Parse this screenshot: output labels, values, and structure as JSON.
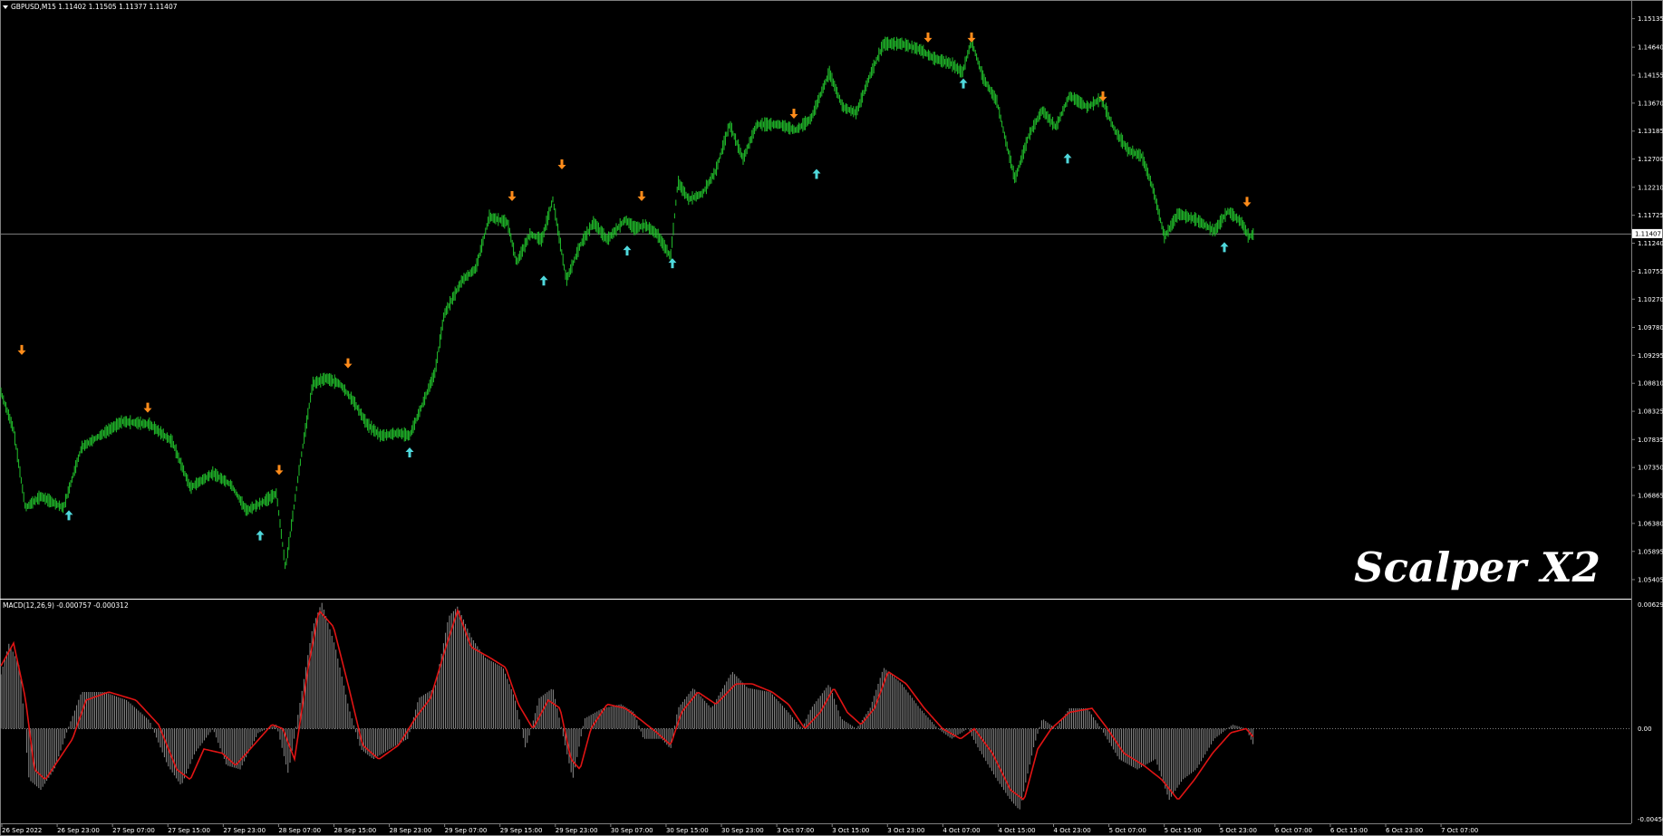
{
  "header": {
    "symbol_line": "GBPUSD,M15  1.11402 1.11505 1.11377 1.11407"
  },
  "watermark": "Scalper X2",
  "price_panel": {
    "current_price": "1.11407",
    "y_ticks": [
      "1.15135",
      "1.14640",
      "1.14155",
      "1.13670",
      "1.13185",
      "1.12700",
      "1.12210",
      "1.11725",
      "1.11240",
      "1.10755",
      "1.10270",
      "1.09780",
      "1.09295",
      "1.08810",
      "1.08325",
      "1.07835",
      "1.07350",
      "1.06865",
      "1.06380",
      "1.05895",
      "1.05405"
    ]
  },
  "macd_panel": {
    "label": "MACD(12,26,9) -0.000757 -0.000312",
    "y_ticks": [
      "0.00629",
      "0.00",
      "-0.004506"
    ]
  },
  "x_ticks": [
    "26 Sep 2022",
    "26 Sep 23:00",
    "27 Sep 07:00",
    "27 Sep 15:00",
    "27 Sep 23:00",
    "28 Sep 07:00",
    "28 Sep 15:00",
    "28 Sep 23:00",
    "29 Sep 07:00",
    "29 Sep 15:00",
    "29 Sep 23:00",
    "30 Sep 07:00",
    "30 Sep 15:00",
    "30 Sep 23:00",
    "3 Oct 07:00",
    "3 Oct 15:00",
    "3 Oct 23:00",
    "4 Oct 07:00",
    "4 Oct 15:00",
    "4 Oct 23:00",
    "5 Oct 07:00",
    "5 Oct 15:00",
    "5 Oct 23:00",
    "6 Oct 07:00",
    "6 Oct 15:00",
    "6 Oct 23:00",
    "7 Oct 07:00"
  ],
  "colors": {
    "background": "#000000",
    "candle": "#22c22c",
    "buy_arrow": "#4fd8dc",
    "sell_arrow": "#ff8c1a",
    "macd_hist": "#8c8c8c",
    "macd_signal": "#e01414",
    "grid_line": "#7f7f7f"
  },
  "chart_data": {
    "type": "line",
    "price_range": [
      1.0509,
      1.1538
    ],
    "macd_range": [
      -0.0046,
      0.00629
    ],
    "price_path": [
      [
        0,
        1.087
      ],
      [
        15,
        1.08
      ],
      [
        28,
        1.0665
      ],
      [
        45,
        1.0685
      ],
      [
        70,
        1.0665
      ],
      [
        90,
        1.077
      ],
      [
        110,
        1.079
      ],
      [
        135,
        1.0815
      ],
      [
        165,
        1.081
      ],
      [
        190,
        1.078
      ],
      [
        210,
        1.07
      ],
      [
        235,
        1.0725
      ],
      [
        255,
        1.0705
      ],
      [
        272,
        1.066
      ],
      [
        290,
        1.0675
      ],
      [
        305,
        1.069
      ],
      [
        315,
        1.056
      ],
      [
        330,
        1.073
      ],
      [
        345,
        1.088
      ],
      [
        360,
        1.089
      ],
      [
        375,
        1.088
      ],
      [
        390,
        1.085
      ],
      [
        405,
        1.081
      ],
      [
        420,
        1.079
      ],
      [
        440,
        1.0795
      ],
      [
        452,
        1.079
      ],
      [
        465,
        1.084
      ],
      [
        480,
        1.09
      ],
      [
        490,
        1.1
      ],
      [
        510,
        1.106
      ],
      [
        525,
        1.108
      ],
      [
        540,
        1.117
      ],
      [
        560,
        1.116
      ],
      [
        570,
        1.109
      ],
      [
        585,
        1.114
      ],
      [
        598,
        1.113
      ],
      [
        610,
        1.12
      ],
      [
        625,
        1.106
      ],
      [
        640,
        1.112
      ],
      [
        655,
        1.116
      ],
      [
        670,
        1.113
      ],
      [
        690,
        1.1165
      ],
      [
        700,
        1.115
      ],
      [
        712,
        1.1155
      ],
      [
        725,
        1.114
      ],
      [
        740,
        1.11
      ],
      [
        748,
        1.123
      ],
      [
        760,
        1.12
      ],
      [
        775,
        1.121
      ],
      [
        790,
        1.125
      ],
      [
        805,
        1.133
      ],
      [
        820,
        1.127
      ],
      [
        835,
        1.133
      ],
      [
        860,
        1.133
      ],
      [
        878,
        1.132
      ],
      [
        895,
        1.134
      ],
      [
        915,
        1.142
      ],
      [
        930,
        1.136
      ],
      [
        945,
        1.135
      ],
      [
        960,
        1.1415
      ],
      [
        975,
        1.147
      ],
      [
        995,
        1.147
      ],
      [
        1015,
        1.146
      ],
      [
        1030,
        1.1445
      ],
      [
        1050,
        1.1435
      ],
      [
        1062,
        1.142
      ],
      [
        1072,
        1.1475
      ],
      [
        1085,
        1.141
      ],
      [
        1100,
        1.137
      ],
      [
        1110,
        1.13
      ],
      [
        1120,
        1.1235
      ],
      [
        1135,
        1.131
      ],
      [
        1150,
        1.1355
      ],
      [
        1165,
        1.1325
      ],
      [
        1180,
        1.138
      ],
      [
        1200,
        1.136
      ],
      [
        1215,
        1.1375
      ],
      [
        1230,
        1.132
      ],
      [
        1245,
        1.1285
      ],
      [
        1260,
        1.1275
      ],
      [
        1272,
        1.122
      ],
      [
        1285,
        1.1135
      ],
      [
        1300,
        1.1175
      ],
      [
        1320,
        1.1165
      ],
      [
        1340,
        1.1145
      ],
      [
        1355,
        1.118
      ],
      [
        1370,
        1.116
      ],
      [
        1378,
        1.1135
      ],
      [
        1383,
        1.114
      ]
    ],
    "macd_hist_path": [
      [
        0,
        0.0025
      ],
      [
        10,
        0.0042
      ],
      [
        22,
        0.003
      ],
      [
        32,
        -0.0025
      ],
      [
        45,
        -0.003
      ],
      [
        60,
        -0.002
      ],
      [
        75,
        0.0
      ],
      [
        90,
        0.0018
      ],
      [
        115,
        0.0018
      ],
      [
        140,
        0.0014
      ],
      [
        165,
        0.0004
      ],
      [
        185,
        -0.0018
      ],
      [
        200,
        -0.0028
      ],
      [
        215,
        -0.0012
      ],
      [
        235,
        0.0
      ],
      [
        250,
        -0.0018
      ],
      [
        265,
        -0.002
      ],
      [
        285,
        -0.0002
      ],
      [
        305,
        0.0002
      ],
      [
        318,
        -0.0022
      ],
      [
        330,
        0.001
      ],
      [
        345,
        0.005
      ],
      [
        355,
        0.0062
      ],
      [
        370,
        0.004
      ],
      [
        385,
        0.001
      ],
      [
        398,
        -0.001
      ],
      [
        412,
        -0.0015
      ],
      [
        430,
        -0.001
      ],
      [
        450,
        -0.0005
      ],
      [
        462,
        0.0015
      ],
      [
        480,
        0.002
      ],
      [
        495,
        0.0055
      ],
      [
        505,
        0.006
      ],
      [
        520,
        0.0045
      ],
      [
        535,
        0.0035
      ],
      [
        555,
        0.003
      ],
      [
        568,
        0.0015
      ],
      [
        580,
        -0.001
      ],
      [
        595,
        0.0015
      ],
      [
        610,
        0.002
      ],
      [
        622,
        -0.0005
      ],
      [
        632,
        -0.0025
      ],
      [
        645,
        0.0005
      ],
      [
        665,
        0.001
      ],
      [
        685,
        0.0012
      ],
      [
        700,
        0.0008
      ],
      [
        710,
        -0.0005
      ],
      [
        730,
        -0.0005
      ],
      [
        740,
        -0.001
      ],
      [
        748,
        0.001
      ],
      [
        765,
        0.002
      ],
      [
        785,
        0.001
      ],
      [
        808,
        0.0028
      ],
      [
        825,
        0.002
      ],
      [
        850,
        0.0018
      ],
      [
        870,
        0.0008
      ],
      [
        885,
        0.0
      ],
      [
        895,
        0.001
      ],
      [
        915,
        0.0022
      ],
      [
        928,
        0.0005
      ],
      [
        945,
        0.0
      ],
      [
        960,
        0.001
      ],
      [
        975,
        0.003
      ],
      [
        995,
        0.0022
      ],
      [
        1015,
        0.001
      ],
      [
        1035,
        0.0
      ],
      [
        1050,
        -0.0005
      ],
      [
        1068,
        0.0
      ],
      [
        1080,
        -0.001
      ],
      [
        1100,
        -0.0025
      ],
      [
        1115,
        -0.0035
      ],
      [
        1125,
        -0.004
      ],
      [
        1140,
        -0.001
      ],
      [
        1150,
        0.0005
      ],
      [
        1165,
        0.0
      ],
      [
        1180,
        0.001
      ],
      [
        1200,
        0.001
      ],
      [
        1215,
        0.0
      ],
      [
        1235,
        -0.0015
      ],
      [
        1255,
        -0.002
      ],
      [
        1275,
        -0.0015
      ],
      [
        1290,
        -0.0035
      ],
      [
        1305,
        -0.0025
      ],
      [
        1320,
        -0.002
      ],
      [
        1340,
        -0.0005
      ],
      [
        1360,
        0.0002
      ],
      [
        1375,
        0.0
      ],
      [
        1383,
        -0.0008
      ]
    ],
    "macd_signal_path": [
      [
        0,
        0.003
      ],
      [
        15,
        0.0042
      ],
      [
        28,
        0.0015
      ],
      [
        38,
        -0.002
      ],
      [
        50,
        -0.0025
      ],
      [
        65,
        -0.0015
      ],
      [
        80,
        -0.0005
      ],
      [
        95,
        0.0014
      ],
      [
        120,
        0.0018
      ],
      [
        150,
        0.0014
      ],
      [
        175,
        0.0002
      ],
      [
        195,
        -0.002
      ],
      [
        210,
        -0.0025
      ],
      [
        225,
        -0.001
      ],
      [
        245,
        -0.0012
      ],
      [
        260,
        -0.0018
      ],
      [
        280,
        -0.0008
      ],
      [
        300,
        0.0002
      ],
      [
        312,
        0.0
      ],
      [
        325,
        -0.0015
      ],
      [
        340,
        0.003
      ],
      [
        352,
        0.0058
      ],
      [
        368,
        0.005
      ],
      [
        385,
        0.002
      ],
      [
        400,
        -0.0008
      ],
      [
        418,
        -0.0015
      ],
      [
        440,
        -0.0008
      ],
      [
        458,
        0.0005
      ],
      [
        475,
        0.0015
      ],
      [
        492,
        0.004
      ],
      [
        505,
        0.0058
      ],
      [
        520,
        0.004
      ],
      [
        540,
        0.0035
      ],
      [
        558,
        0.003
      ],
      [
        572,
        0.0012
      ],
      [
        588,
        0.0
      ],
      [
        605,
        0.0014
      ],
      [
        618,
        0.001
      ],
      [
        630,
        -0.0015
      ],
      [
        640,
        -0.002
      ],
      [
        652,
        0.0
      ],
      [
        670,
        0.0012
      ],
      [
        690,
        0.001
      ],
      [
        705,
        0.0005
      ],
      [
        725,
        -0.0002
      ],
      [
        740,
        -0.0008
      ],
      [
        752,
        0.0008
      ],
      [
        770,
        0.0018
      ],
      [
        790,
        0.0012
      ],
      [
        812,
        0.0022
      ],
      [
        830,
        0.0022
      ],
      [
        852,
        0.0018
      ],
      [
        870,
        0.0012
      ],
      [
        888,
        0.0
      ],
      [
        905,
        0.0008
      ],
      [
        920,
        0.002
      ],
      [
        935,
        0.0008
      ],
      [
        950,
        0.0002
      ],
      [
        965,
        0.001
      ],
      [
        980,
        0.0028
      ],
      [
        1000,
        0.0022
      ],
      [
        1020,
        0.001
      ],
      [
        1040,
        0.0
      ],
      [
        1060,
        -0.0005
      ],
      [
        1075,
        0.0
      ],
      [
        1095,
        -0.0012
      ],
      [
        1115,
        -0.003
      ],
      [
        1130,
        -0.0035
      ],
      [
        1145,
        -0.001
      ],
      [
        1160,
        0.0
      ],
      [
        1180,
        0.0008
      ],
      [
        1205,
        0.001
      ],
      [
        1222,
        0.0
      ],
      [
        1240,
        -0.0012
      ],
      [
        1262,
        -0.0018
      ],
      [
        1282,
        -0.0025
      ],
      [
        1300,
        -0.0035
      ],
      [
        1318,
        -0.0025
      ],
      [
        1338,
        -0.0012
      ],
      [
        1358,
        -0.0002
      ],
      [
        1375,
        0.0
      ],
      [
        1383,
        -0.0004
      ]
    ],
    "sell_arrows": [
      [
        24,
        1.0938
      ],
      [
        163,
        1.0838
      ],
      [
        308,
        1.073
      ],
      [
        384,
        1.0915
      ],
      [
        565,
        1.1205
      ],
      [
        620,
        1.126
      ],
      [
        708,
        1.1205
      ],
      [
        876,
        1.1348
      ],
      [
        1024,
        1.148
      ],
      [
        1072,
        1.148
      ],
      [
        1217,
        1.1378
      ],
      [
        1376,
        1.1195
      ]
    ],
    "buy_arrows": [
      [
        76,
        1.0653
      ],
      [
        287,
        1.0618
      ],
      [
        452,
        1.0762
      ],
      [
        600,
        1.106
      ],
      [
        692,
        1.1112
      ],
      [
        742,
        1.109
      ],
      [
        901,
        1.1245
      ],
      [
        1063,
        1.1402
      ],
      [
        1178,
        1.1272
      ],
      [
        1351,
        1.1118
      ]
    ]
  }
}
